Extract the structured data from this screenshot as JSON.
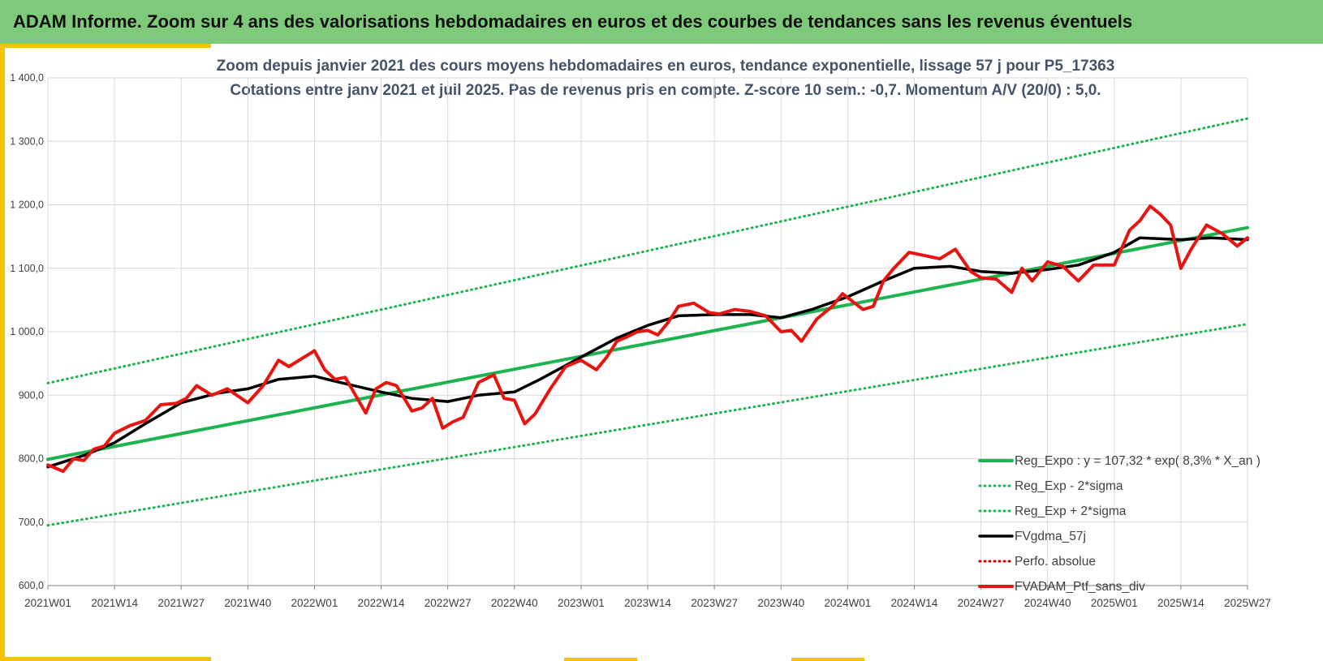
{
  "header": {
    "title": "ADAM Informe. Zoom sur 4 ans des valorisations hebdomadaires en euros et des courbes de tendances sans les revenus éventuels"
  },
  "colors": {
    "banner": "#7fc97a",
    "accent_frame": "#f5c400",
    "trend": "#1db34f",
    "moving_average": "#000000",
    "portfolio": "#e8140f",
    "absolute_perf": "#c00000",
    "title_text": "#44546a"
  },
  "chart_data": {
    "type": "line",
    "title": [
      "Zoom depuis janvier 2021 des cours moyens hebdomadaires  en euros, tendance exponentielle, lissage 57 j pour P5_17363",
      "Cotations  entre janv 2021 et juil 2025. Pas de revenus pris en compte. Z-score 10 sem.: -0,7. Momentum A/V (20/0) : 5,0."
    ],
    "xlabel": "",
    "ylabel": "",
    "ylim": [
      600,
      1400
    ],
    "yticks": [
      600,
      700,
      800,
      900,
      1000,
      1100,
      1200,
      1300,
      1400
    ],
    "ytick_labels": [
      "600,0",
      "700,0",
      "800,0",
      "900,0",
      "1 000,0",
      "1 100,0",
      "1 200,0",
      "1 300,0",
      "1 400,0"
    ],
    "x_tick_labels": [
      "2021W01",
      "2021W14",
      "2021W27",
      "2021W40",
      "2022W01",
      "2022W14",
      "2022W27",
      "2022W40",
      "2023W01",
      "2023W14",
      "2023W27",
      "2023W40",
      "2024W01",
      "2024W14",
      "2024W27",
      "2024W40",
      "2025W01",
      "2025W14",
      "2025W27"
    ],
    "grid": true,
    "legend_position": "bottom-right",
    "series": [
      {
        "name": "Reg_Expo : y = 107,32 * exp( 8,3% *  X_an )",
        "style": "solid-thick",
        "color": "#1db34f",
        "points": [
          [
            "2021W01",
            799
          ],
          [
            "2025W27",
            1164
          ]
        ]
      },
      {
        "name": "Reg_Exp - 2*sigma",
        "style": "dotted",
        "color": "#1db34f",
        "points": [
          [
            "2021W01",
            695
          ],
          [
            "2025W27",
            1012
          ]
        ]
      },
      {
        "name": "Reg_Exp + 2*sigma",
        "style": "dotted",
        "color": "#1db34f",
        "points": [
          [
            "2021W01",
            919
          ],
          [
            "2025W27",
            1336
          ]
        ]
      },
      {
        "name": "FVgdma_57j",
        "style": "solid",
        "color": "#000000",
        "points": [
          [
            "2021W01",
            787
          ],
          [
            "2021W08",
            805
          ],
          [
            "2021W14",
            825
          ],
          [
            "2021W20",
            855
          ],
          [
            "2021W27",
            888
          ],
          [
            "2021W34",
            903
          ],
          [
            "2021W40",
            910
          ],
          [
            "2021W46",
            925
          ],
          [
            "2022W01",
            930
          ],
          [
            "2022W06",
            920
          ],
          [
            "2022W14",
            905
          ],
          [
            "2022W20",
            895
          ],
          [
            "2022W27",
            890
          ],
          [
            "2022W33",
            900
          ],
          [
            "2022W40",
            905
          ],
          [
            "2022W45",
            925
          ],
          [
            "2023W01",
            960
          ],
          [
            "2023W08",
            990
          ],
          [
            "2023W14",
            1010
          ],
          [
            "2023W20",
            1025
          ],
          [
            "2023W27",
            1027
          ],
          [
            "2023W34",
            1027
          ],
          [
            "2023W40",
            1022
          ],
          [
            "2023W46",
            1035
          ],
          [
            "2024W01",
            1055
          ],
          [
            "2024W08",
            1080
          ],
          [
            "2024W14",
            1100
          ],
          [
            "2024W21",
            1103
          ],
          [
            "2024W27",
            1095
          ],
          [
            "2024W33",
            1092
          ],
          [
            "2024W40",
            1098
          ],
          [
            "2024W46",
            1105
          ],
          [
            "2025W01",
            1125
          ],
          [
            "2025W06",
            1148
          ],
          [
            "2025W14",
            1145
          ],
          [
            "2025W20",
            1148
          ],
          [
            "2025W27",
            1145
          ]
        ]
      },
      {
        "name": "Perfo. absolue",
        "style": "dotted",
        "color": "#c00000",
        "points": []
      },
      {
        "name": "FVADAM_Ptf_sans_div",
        "style": "solid-thick",
        "color": "#e8140f",
        "points": [
          [
            "2021W01",
            790
          ],
          [
            "2021W04",
            780
          ],
          [
            "2021W06",
            800
          ],
          [
            "2021W08",
            797
          ],
          [
            "2021W10",
            815
          ],
          [
            "2021W12",
            820
          ],
          [
            "2021W14",
            840
          ],
          [
            "2021W17",
            852
          ],
          [
            "2021W20",
            860
          ],
          [
            "2021W23",
            885
          ],
          [
            "2021W26",
            887
          ],
          [
            "2021W28",
            895
          ],
          [
            "2021W30",
            915
          ],
          [
            "2021W33",
            900
          ],
          [
            "2021W36",
            910
          ],
          [
            "2021W40",
            888
          ],
          [
            "2021W43",
            915
          ],
          [
            "2021W46",
            955
          ],
          [
            "2021W48",
            945
          ],
          [
            "2021W50",
            955
          ],
          [
            "2022W01",
            970
          ],
          [
            "2022W03",
            940
          ],
          [
            "2022W05",
            925
          ],
          [
            "2022W07",
            928
          ],
          [
            "2022W09",
            900
          ],
          [
            "2022W11",
            872
          ],
          [
            "2022W13",
            910
          ],
          [
            "2022W15",
            920
          ],
          [
            "2022W17",
            915
          ],
          [
            "2022W20",
            875
          ],
          [
            "2022W22",
            880
          ],
          [
            "2022W24",
            895
          ],
          [
            "2022W26",
            848
          ],
          [
            "2022W28",
            858
          ],
          [
            "2022W30",
            865
          ],
          [
            "2022W33",
            920
          ],
          [
            "2022W36",
            932
          ],
          [
            "2022W38",
            895
          ],
          [
            "2022W40",
            892
          ],
          [
            "2022W42",
            855
          ],
          [
            "2022W44",
            870
          ],
          [
            "2022W47",
            910
          ],
          [
            "2022W50",
            945
          ],
          [
            "2023W01",
            955
          ],
          [
            "2023W04",
            940
          ],
          [
            "2023W06",
            960
          ],
          [
            "2023W08",
            985
          ],
          [
            "2023W10",
            992
          ],
          [
            "2023W12",
            1000
          ],
          [
            "2023W14",
            1002
          ],
          [
            "2023W16",
            995
          ],
          [
            "2023W18",
            1015
          ],
          [
            "2023W20",
            1040
          ],
          [
            "2023W23",
            1045
          ],
          [
            "2023W26",
            1030
          ],
          [
            "2023W28",
            1028
          ],
          [
            "2023W31",
            1035
          ],
          [
            "2023W34",
            1032
          ],
          [
            "2023W37",
            1025
          ],
          [
            "2023W40",
            1000
          ],
          [
            "2023W42",
            1002
          ],
          [
            "2023W44",
            985
          ],
          [
            "2023W47",
            1020
          ],
          [
            "2023W50",
            1040
          ],
          [
            "2023W52",
            1060
          ],
          [
            "2024W04",
            1035
          ],
          [
            "2024W06",
            1040
          ],
          [
            "2024W08",
            1080
          ],
          [
            "2024W10",
            1100
          ],
          [
            "2024W13",
            1125
          ],
          [
            "2024W16",
            1120
          ],
          [
            "2024W19",
            1115
          ],
          [
            "2024W22",
            1130
          ],
          [
            "2024W25",
            1095
          ],
          [
            "2024W27",
            1085
          ],
          [
            "2024W30",
            1083
          ],
          [
            "2024W33",
            1062
          ],
          [
            "2024W35",
            1100
          ],
          [
            "2024W37",
            1080
          ],
          [
            "2024W40",
            1110
          ],
          [
            "2024W43",
            1103
          ],
          [
            "2024W46",
            1080
          ],
          [
            "2024W49",
            1105
          ],
          [
            "2025W01",
            1105
          ],
          [
            "2025W04",
            1160
          ],
          [
            "2025W06",
            1175
          ],
          [
            "2025W08",
            1198
          ],
          [
            "2025W10",
            1185
          ],
          [
            "2025W12",
            1168
          ],
          [
            "2025W14",
            1100
          ],
          [
            "2025W16",
            1130
          ],
          [
            "2025W19",
            1168
          ],
          [
            "2025W22",
            1155
          ],
          [
            "2025W25",
            1135
          ],
          [
            "2025W27",
            1148
          ]
        ]
      }
    ]
  }
}
